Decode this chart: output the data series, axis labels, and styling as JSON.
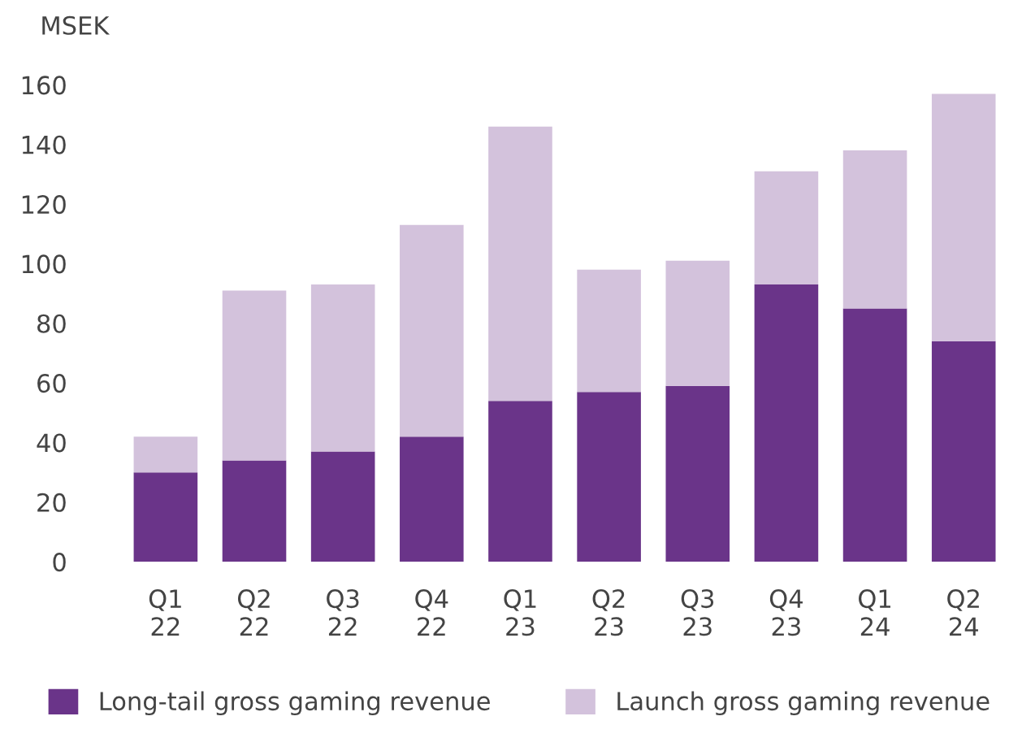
{
  "chart_data": {
    "type": "bar",
    "stacked": true,
    "ylabel": "MSEK",
    "categories": [
      "Q1\n22",
      "Q2\n22",
      "Q3\n22",
      "Q4\n22",
      "Q1\n23",
      "Q2\n23",
      "Q3\n23",
      "Q4\n23",
      "Q1\n24",
      "Q2\n24"
    ],
    "series": [
      {
        "name": "Long-tail gross gaming revenue",
        "color": "#6a3489",
        "values": [
          30,
          34,
          37,
          42,
          54,
          57,
          59,
          93,
          85,
          74
        ]
      },
      {
        "name": "Launch gross gaming revenue",
        "color": "#d3c2dc",
        "values": [
          12,
          57,
          56,
          71,
          92,
          41,
          42,
          38,
          53,
          83
        ]
      }
    ],
    "ylim": [
      0,
      160
    ],
    "yticks": [
      0,
      20,
      40,
      60,
      80,
      100,
      120,
      140,
      160
    ],
    "grid": false,
    "legend": "bottom"
  }
}
